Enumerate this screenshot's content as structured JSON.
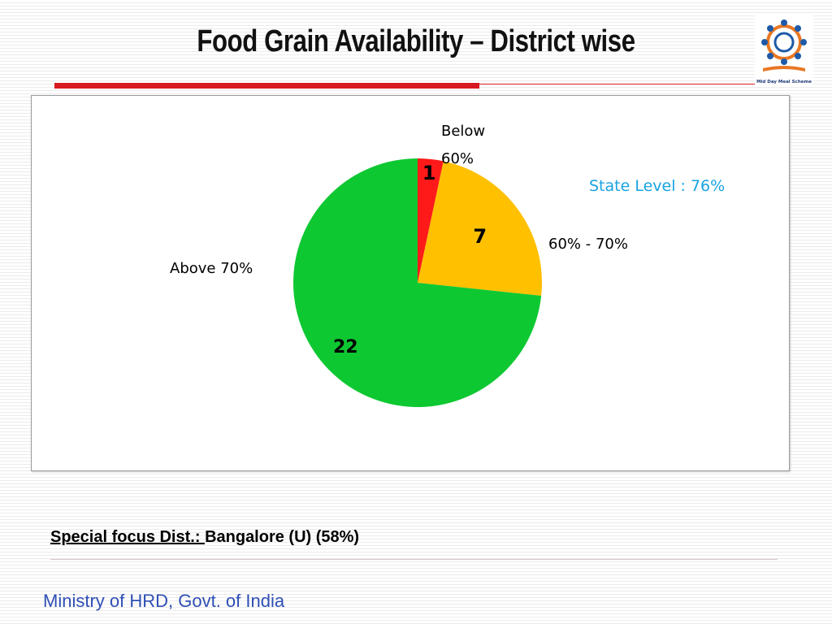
{
  "slide": {
    "title": "Food Grain Availability – District wise",
    "state_level": "State Level : 76%",
    "special_focus_label": "Special focus Dist.: ",
    "special_focus_value": "Bangalore (U) (58%)",
    "footer": "Ministry of HRD, Govt. of India",
    "logo_caption": "Mid Day Meal Scheme"
  },
  "chart_data": {
    "type": "pie",
    "title": "",
    "categories": [
      "Below 60%",
      "60% - 70%",
      "Above 70%"
    ],
    "values": [
      1,
      7,
      22
    ],
    "category_label_lines": [
      [
        "Below",
        "60%"
      ],
      [
        "60% - 70%"
      ],
      [
        "Above 70%"
      ]
    ],
    "colors": [
      "#ff1a1a",
      "#ffc000",
      "#0ec832"
    ],
    "start_angle": "12 o'clock",
    "direction": "clockwise",
    "data_labels": "inside",
    "legend": "none"
  }
}
